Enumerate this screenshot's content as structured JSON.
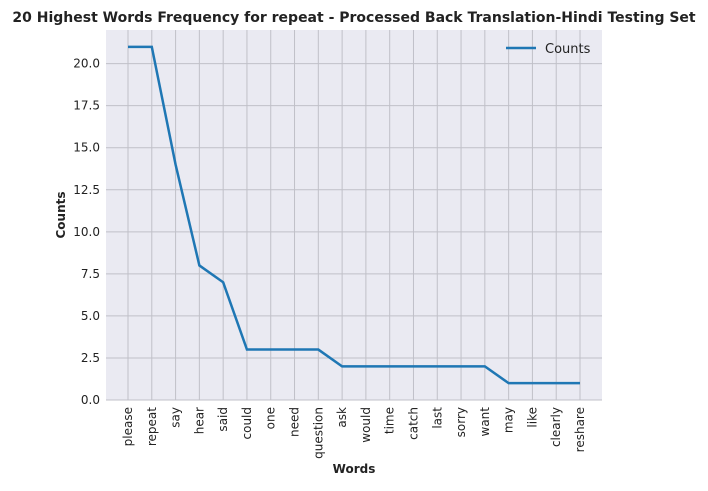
{
  "chart_data": {
    "type": "line",
    "title": "20 Highest Words Frequency for repeat - Processed Back Translation-Hindi Testing Set",
    "xlabel": "Words",
    "ylabel": "Counts",
    "categories": [
      "please",
      "repeat",
      "say",
      "hear",
      "said",
      "could",
      "one",
      "need",
      "question",
      "ask",
      "would",
      "time",
      "catch",
      "last",
      "sorry",
      "want",
      "may",
      "like",
      "clearly",
      "reshare"
    ],
    "series": [
      {
        "name": "Counts",
        "values": [
          21,
          21,
          14,
          8,
          7,
          3,
          3,
          3,
          3,
          2,
          2,
          2,
          2,
          2,
          2,
          2,
          1,
          1,
          1,
          1
        ],
        "color": "#1f77b4"
      }
    ],
    "ylim": [
      0,
      22
    ],
    "yticks": [
      0.0,
      2.5,
      5.0,
      7.5,
      10.0,
      12.5,
      15.0,
      17.5,
      20.0
    ],
    "ytick_labels": [
      "0.0",
      "2.5",
      "5.0",
      "7.5",
      "10.0",
      "12.5",
      "15.0",
      "17.5",
      "20.0"
    ],
    "grid": true,
    "legend_position": "top-right",
    "background_color": "#eaeaf2",
    "grid_color": "#c0c0c8"
  }
}
